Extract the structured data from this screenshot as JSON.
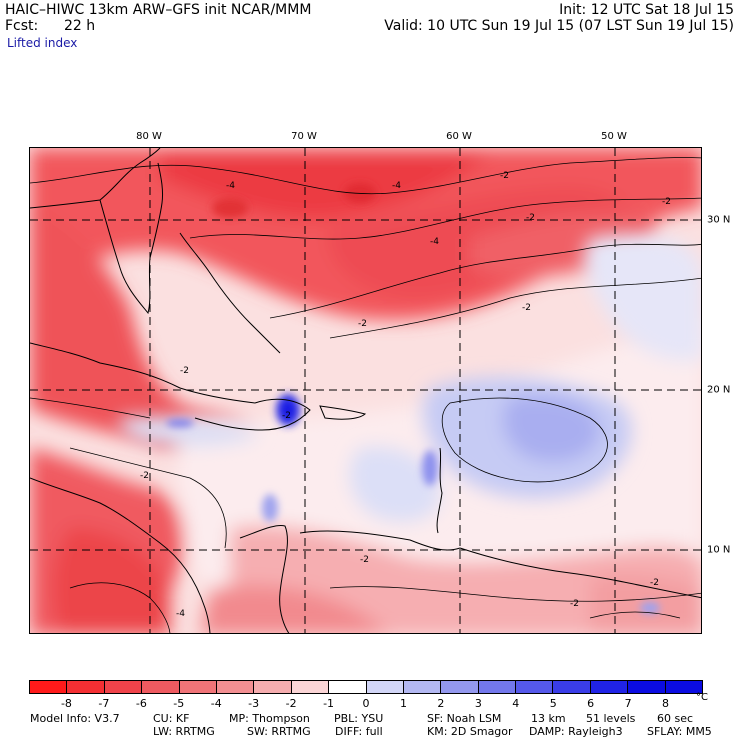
{
  "header": {
    "model_title": "HAIC–HIWC 13km ARW–GFS init   NCAR/MMM",
    "init": "Init: 12 UTC Sat 18 Jul 15",
    "fcst_label": "Fcst:",
    "fcst_value": "22 h",
    "valid": "Valid: 10 UTC Sun 19 Jul 15 (07 LST Sun 19 Jul 15)",
    "field": "Lifted index"
  },
  "axes": {
    "lon_labels": [
      "80 W",
      "70 W",
      "60 W",
      "50 W"
    ],
    "lat_labels": [
      "30 N",
      "20 N",
      "10 N"
    ]
  },
  "contour_labels": [
    "-4",
    "-4",
    "-2",
    "-2",
    "-2",
    "-4",
    "-2",
    "-2",
    "-2",
    "-2",
    "-2",
    "-4",
    "-2",
    "-2",
    "-2"
  ],
  "colorbar": {
    "ticks": [
      "-8",
      "-7",
      "-6",
      "-5",
      "-4",
      "-3",
      "-2",
      "-1",
      "0",
      "1",
      "2",
      "3",
      "4",
      "5",
      "6",
      "7",
      "8"
    ],
    "unit": "°C",
    "colors": [
      "#ff1a1a",
      "#f42f33",
      "#f0434a",
      "#ee5a60",
      "#f07478",
      "#f38f92",
      "#f6adaf",
      "#fbd5d6",
      "#ffffff",
      "#d2d6f7",
      "#b3b8f2",
      "#9398ee",
      "#7378ec",
      "#5559ea",
      "#3a3de8",
      "#2023e6",
      "#0b0ce2"
    ]
  },
  "model_info": {
    "line1": [
      "Model Info: V3.7",
      "CU: KF",
      "MP: Thompson",
      "PBL: YSU",
      "SF: Noah LSM",
      "13 km",
      "51 levels",
      "60 sec"
    ],
    "line2": [
      "LW: RRTMG",
      "SW: RRTMG",
      "DIFF: full",
      "KM: 2D Smagor",
      "DAMP: Rayleigh3",
      "SFLAY: MM5"
    ]
  }
}
